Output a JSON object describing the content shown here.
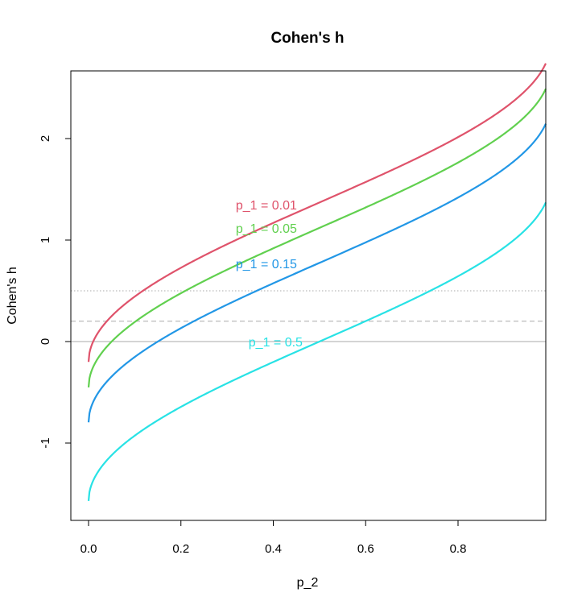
{
  "chart_data": {
    "type": "line",
    "title": "Cohen's h",
    "xlabel": "p_2",
    "ylabel": "Cohen's h",
    "xlim": [
      0,
      1
    ],
    "ylim": [
      -1.7,
      2.65
    ],
    "x_ticks": [
      {
        "value": 0.0,
        "label": "0.0"
      },
      {
        "value": 0.2,
        "label": "0.2"
      },
      {
        "value": 0.4,
        "label": "0.4"
      },
      {
        "value": 0.6,
        "label": "0.6"
      },
      {
        "value": 0.8,
        "label": "0.8"
      }
    ],
    "y_ticks": [
      {
        "value": -1,
        "label": "-1"
      },
      {
        "value": 0,
        "label": "0"
      },
      {
        "value": 1,
        "label": "1"
      },
      {
        "value": 2,
        "label": "2"
      }
    ],
    "reference_lines": [
      {
        "y": 0,
        "style": "solid",
        "color": "#aaaaaa"
      },
      {
        "y": 0.2,
        "style": "dashed",
        "color": "#aaaaaa"
      },
      {
        "y": 0.5,
        "style": "dotted",
        "color": "#aaaaaa"
      }
    ],
    "grid": false,
    "series": [
      {
        "name": "p_1 = 0.01",
        "p1": 0.01,
        "color": "#DF536B",
        "label": "p_1 = 0.01",
        "label_x": 0.385,
        "label_y": 1.35
      },
      {
        "name": "p_1 = 0.05",
        "p1": 0.05,
        "color": "#61D04F",
        "label": "p_1 = 0.05",
        "label_x": 0.385,
        "label_y": 1.12
      },
      {
        "name": "p_1 = 0.15",
        "p1": 0.15,
        "color": "#2297E6",
        "label": "p_1 = 0.15",
        "label_x": 0.385,
        "label_y": 0.77
      },
      {
        "name": "p_1 = 0.5",
        "p1": 0.5,
        "color": "#28E2E5",
        "label": "p_1 = 0.5",
        "label_x": 0.405,
        "label_y": 0.0
      }
    ]
  }
}
